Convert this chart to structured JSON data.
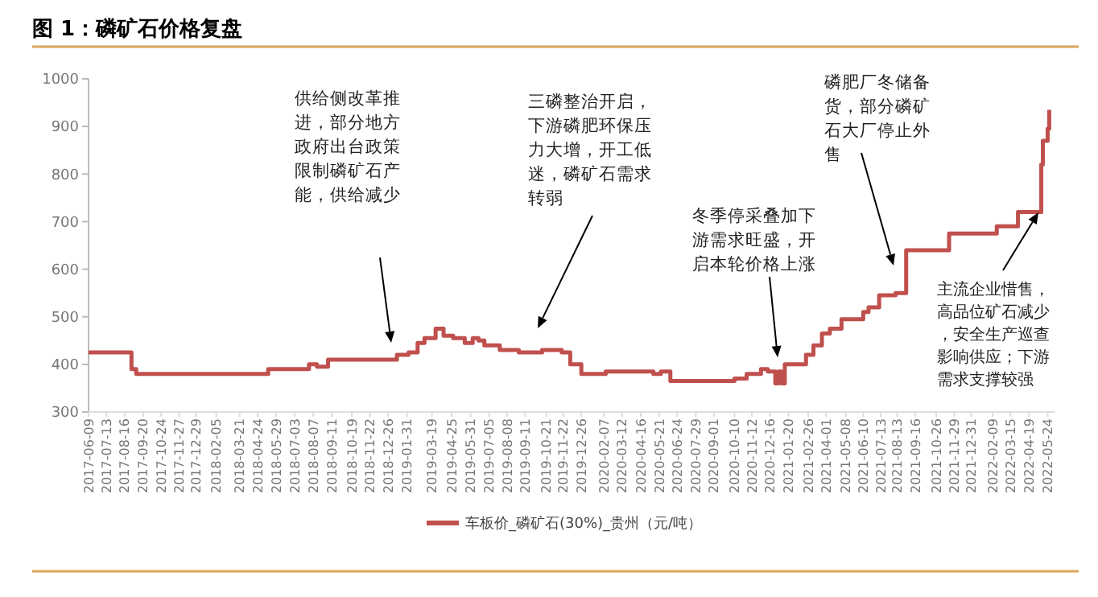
{
  "chart_data": {
    "type": "step",
    "title": "图 1：磷矿石价格复盘",
    "x": [
      "2017-06-09",
      "2017-08-29",
      "2017-09-07",
      "2018-05-14",
      "2018-07-30",
      "2018-08-14",
      "2018-09-04",
      "2019-01-12",
      "2019-02-03",
      "2019-02-20",
      "2019-03-05",
      "2019-03-26",
      "2019-04-10",
      "2019-04-28",
      "2019-05-20",
      "2019-06-04",
      "2019-06-15",
      "2019-06-26",
      "2019-07-25",
      "2019-08-30",
      "2019-10-13",
      "2019-11-19",
      "2019-12-05",
      "2019-12-26",
      "2020-02-10",
      "2020-05-10",
      "2020-05-24",
      "2020-06-11",
      "2020-10-10",
      "2020-11-02",
      "2020-11-29",
      "2020-12-12",
      "2020-12-26",
      "2021-01-01",
      "2021-01-07",
      "2021-01-13",
      "2021-02-22",
      "2021-03-08",
      "2021-03-24",
      "2021-04-08",
      "2021-04-30",
      "2021-06-10",
      "2021-06-20",
      "2021-07-10",
      "2021-08-10",
      "2021-08-30",
      "2021-11-19",
      "2022-02-17",
      "2022-03-29",
      "2022-05-12",
      "2022-05-15",
      "2022-05-24",
      "2022-05-27"
    ],
    "series": [
      {
        "name": "车板价_磷矿石(30%)_贵州（元/吨）",
        "color": "#c0504d",
        "values": [
          425,
          390,
          380,
          390,
          400,
          395,
          410,
          420,
          425,
          445,
          455,
          475,
          460,
          455,
          445,
          455,
          450,
          440,
          430,
          425,
          430,
          425,
          400,
          380,
          385,
          380,
          385,
          365,
          370,
          380,
          390,
          385,
          360,
          385,
          360,
          400,
          420,
          440,
          465,
          475,
          495,
          510,
          520,
          545,
          550,
          640,
          675,
          690,
          720,
          820,
          870,
          895,
          935
        ]
      }
    ],
    "xlim": [
      "2017-06-09",
      "2022-06-06"
    ],
    "xticks": [
      "2017-06-09",
      "2017-07-13",
      "2017-08-16",
      "2017-09-20",
      "2017-10-24",
      "2017-11-27",
      "2017-12-29",
      "2018-02-05",
      "2018-03-21",
      "2018-04-24",
      "2018-05-29",
      "2018-07-03",
      "2018-08-07",
      "2018-09-11",
      "2018-10-19",
      "2018-11-22",
      "2018-12-26",
      "2019-01-31",
      "2019-03-19",
      "2019-04-25",
      "2019-05-31",
      "2019-07-05",
      "2019-08-08",
      "2019-09-11",
      "2019-10-21",
      "2019-11-22",
      "2019-12-26",
      "2020-02-07",
      "2020-03-12",
      "2020-04-16",
      "2020-05-21",
      "2020-06-24",
      "2020-07-29",
      "2020-09-01",
      "2020-10-10",
      "2020-11-12",
      "2020-12-16",
      "2021-01-20",
      "2021-02-26",
      "2021-04-01",
      "2021-05-08",
      "2021-06-10",
      "2021-07-13",
      "2021-08-13",
      "2021-09-16",
      "2021-10-26",
      "2021-11-29",
      "2021-12-31",
      "2022-02-09",
      "2022-03-15",
      "2022-04-19",
      "2022-05-24"
    ],
    "ylim": [
      300,
      1000
    ],
    "yticks": [
      300,
      400,
      500,
      600,
      700,
      800,
      900,
      1000
    ],
    "grid": false,
    "legend": "bottom",
    "line_style": "solid",
    "marker": "none",
    "annotations": [
      "供给侧改革推进，部分地方政府出台政策限制磷矿石产能，供给减少",
      "三磷整治开启，下游磷肥环保压力大增，开工低迷，磷矿石需求转弱",
      "冬季停采叠加下游需求旺盛，开启本轮价格上涨",
      "磷肥厂冬储备货，部分磷矿石大厂停止外售",
      "主流企业惜售，高品位矿石减少，安全生产巡查影响供应；下游需求支撑较强"
    ]
  }
}
